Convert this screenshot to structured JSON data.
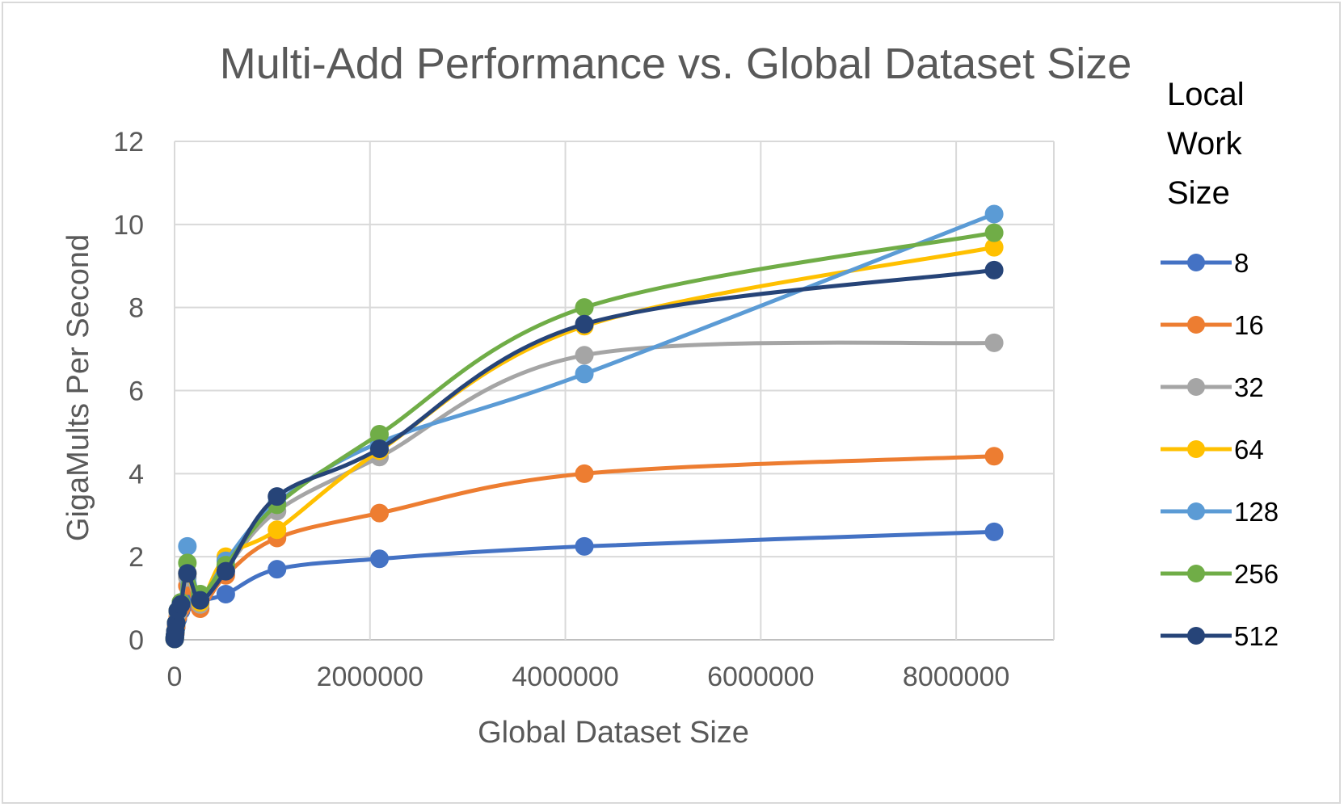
{
  "chart_data": {
    "type": "scatter",
    "title": "Multi-Add Performance vs. Global Dataset Size",
    "xlabel": "Global Dataset Size",
    "ylabel": "GigaMults Per Second",
    "xlim": [
      0,
      9000000
    ],
    "ylim": [
      0,
      12
    ],
    "x_ticks": [
      "0",
      "2000000",
      "4000000",
      "6000000",
      "8000000"
    ],
    "y_ticks": [
      "0",
      "2",
      "4",
      "6",
      "8",
      "10",
      "12"
    ],
    "grid": true,
    "smooth_lines": true,
    "legend_title": [
      "Local",
      "Work",
      "Size"
    ],
    "legend_position": "right",
    "x": [
      1024,
      2048,
      4096,
      8192,
      16384,
      32768,
      65536,
      131072,
      262144,
      524288,
      1048576,
      2097152,
      4194304,
      8388608
    ],
    "series": [
      {
        "name": "8",
        "color": "#4472c4",
        "values": [
          0.02,
          0.04,
          0.08,
          0.15,
          0.3,
          0.5,
          0.7,
          0.9,
          0.95,
          1.1,
          1.7,
          1.95,
          2.25,
          2.6
        ]
      },
      {
        "name": "16",
        "color": "#ed7d31",
        "values": [
          0.02,
          0.04,
          0.08,
          0.16,
          0.32,
          0.55,
          0.75,
          1.3,
          0.75,
          1.55,
          2.45,
          3.05,
          4.0,
          4.42
        ]
      },
      {
        "name": "32",
        "color": "#a5a5a5",
        "values": [
          0.02,
          0.05,
          0.1,
          0.2,
          0.4,
          0.65,
          0.85,
          1.5,
          0.85,
          1.7,
          3.1,
          4.4,
          6.85,
          7.15
        ]
      },
      {
        "name": "64",
        "color": "#ffc000",
        "values": [
          0.02,
          0.05,
          0.1,
          0.2,
          0.4,
          0.7,
          0.9,
          1.6,
          0.9,
          2.0,
          2.65,
          4.55,
          7.55,
          9.45
        ]
      },
      {
        "name": "128",
        "color": "#5b9bd5",
        "values": [
          0.02,
          0.05,
          0.1,
          0.2,
          0.4,
          0.7,
          0.9,
          2.25,
          1.0,
          1.9,
          3.3,
          4.75,
          6.4,
          10.25
        ]
      },
      {
        "name": "256",
        "color": "#70ad47",
        "values": [
          0.02,
          0.05,
          0.1,
          0.2,
          0.4,
          0.7,
          0.9,
          1.85,
          1.1,
          1.8,
          3.25,
          4.95,
          8.0,
          9.8
        ]
      },
      {
        "name": "512",
        "color": "#264478",
        "values": [
          0.02,
          0.05,
          0.1,
          0.2,
          0.4,
          0.7,
          0.85,
          1.6,
          0.95,
          1.65,
          3.45,
          4.6,
          7.6,
          8.9
        ]
      }
    ]
  }
}
